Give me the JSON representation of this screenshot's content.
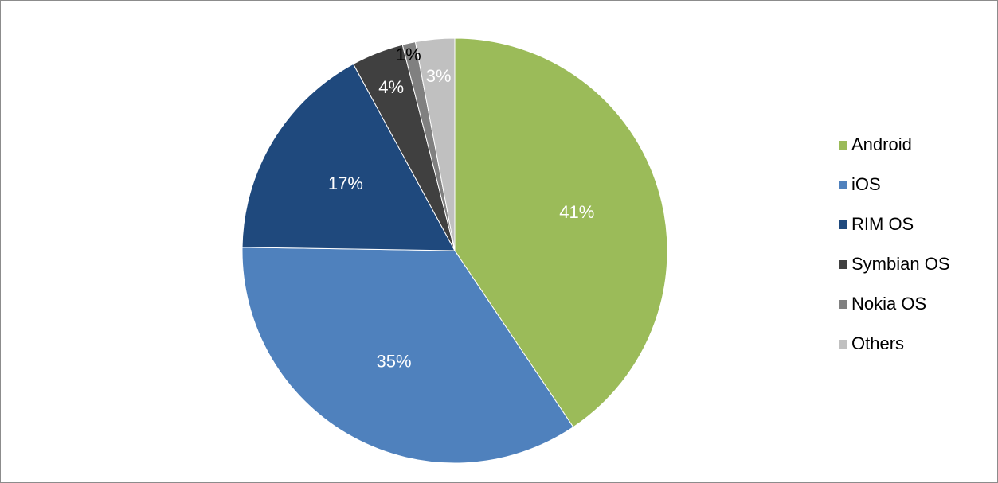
{
  "chart_data": {
    "type": "pie",
    "categories": [
      "Android",
      "iOS",
      "RIM OS",
      "Symbian OS",
      "Nokia OS",
      "Others"
    ],
    "values": [
      41,
      35,
      17,
      4,
      1,
      3
    ],
    "value_labels": [
      "41%",
      "35%",
      "17%",
      "4%",
      "1%",
      "3%"
    ],
    "colors": [
      "#9bbb59",
      "#4f81bd",
      "#1f497d",
      "#404040",
      "#808080",
      "#c0c0c0"
    ],
    "legend": "right"
  }
}
